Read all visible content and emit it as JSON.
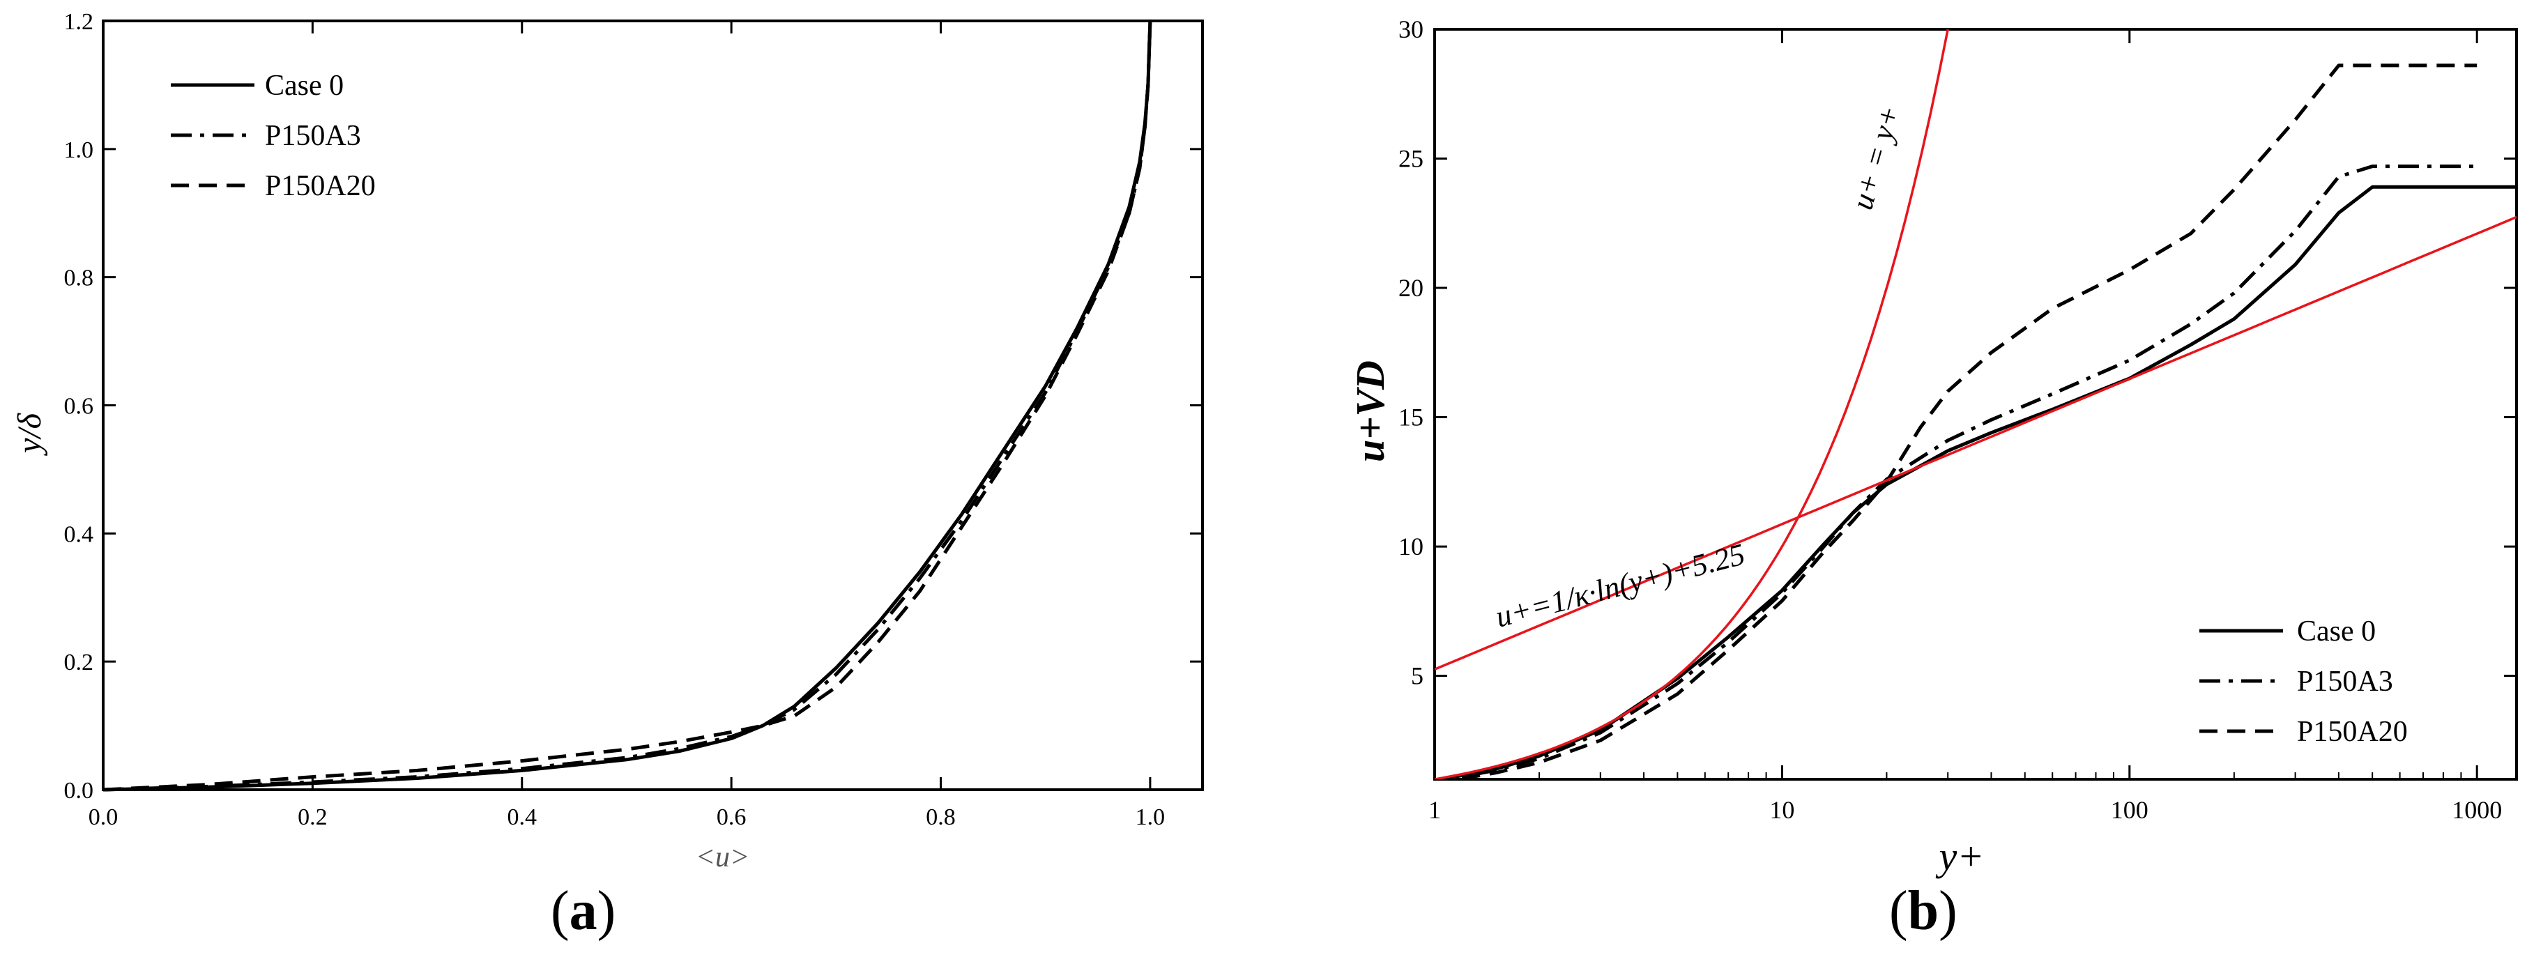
{
  "chart_data": [
    {
      "panel_label": "a",
      "type": "line",
      "xlabel": "<u>",
      "ylabel": "y/δ",
      "xlim": [
        0.0,
        1.05
      ],
      "ylim": [
        0.0,
        1.2
      ],
      "xticks": [
        "0.0",
        "0.2",
        "0.4",
        "0.6",
        "0.8",
        "1.0"
      ],
      "yticks": [
        "0.0",
        "0.2",
        "0.4",
        "0.6",
        "0.8",
        "1.0",
        "1.2"
      ],
      "grid": false,
      "legend_position": "top-left",
      "series": [
        {
          "name": "Case 0",
          "dash": "solid",
          "color": "#000000",
          "points": [
            [
              0.0,
              0.0
            ],
            [
              0.1,
              0.004
            ],
            [
              0.2,
              0.01
            ],
            [
              0.3,
              0.018
            ],
            [
              0.4,
              0.03
            ],
            [
              0.5,
              0.047
            ],
            [
              0.55,
              0.06
            ],
            [
              0.6,
              0.08
            ],
            [
              0.63,
              0.1
            ],
            [
              0.66,
              0.13
            ],
            [
              0.7,
              0.19
            ],
            [
              0.74,
              0.26
            ],
            [
              0.78,
              0.34
            ],
            [
              0.82,
              0.43
            ],
            [
              0.86,
              0.53
            ],
            [
              0.9,
              0.63
            ],
            [
              0.93,
              0.72
            ],
            [
              0.96,
              0.82
            ],
            [
              0.98,
              0.91
            ],
            [
              0.99,
              0.98
            ],
            [
              0.995,
              1.04
            ],
            [
              0.998,
              1.1
            ],
            [
              1.0,
              1.2
            ]
          ]
        },
        {
          "name": "P150A3",
          "dash": "dashdot",
          "color": "#000000",
          "points": [
            [
              0.0,
              0.0
            ],
            [
              0.1,
              0.005
            ],
            [
              0.2,
              0.012
            ],
            [
              0.3,
              0.02
            ],
            [
              0.4,
              0.033
            ],
            [
              0.5,
              0.05
            ],
            [
              0.55,
              0.064
            ],
            [
              0.6,
              0.083
            ],
            [
              0.63,
              0.1
            ],
            [
              0.66,
              0.125
            ],
            [
              0.7,
              0.18
            ],
            [
              0.74,
              0.25
            ],
            [
              0.78,
              0.33
            ],
            [
              0.82,
              0.42
            ],
            [
              0.86,
              0.52
            ],
            [
              0.9,
              0.62
            ],
            [
              0.93,
              0.715
            ],
            [
              0.96,
              0.815
            ],
            [
              0.98,
              0.9
            ],
            [
              0.99,
              0.97
            ],
            [
              0.995,
              1.035
            ],
            [
              0.998,
              1.1
            ],
            [
              1.0,
              1.2
            ]
          ]
        },
        {
          "name": "P150A20",
          "dash": "dashed",
          "color": "#000000",
          "points": [
            [
              0.0,
              0.0
            ],
            [
              0.1,
              0.008
            ],
            [
              0.2,
              0.02
            ],
            [
              0.3,
              0.03
            ],
            [
              0.4,
              0.045
            ],
            [
              0.5,
              0.063
            ],
            [
              0.55,
              0.075
            ],
            [
              0.6,
              0.09
            ],
            [
              0.63,
              0.1
            ],
            [
              0.66,
              0.115
            ],
            [
              0.7,
              0.16
            ],
            [
              0.74,
              0.23
            ],
            [
              0.78,
              0.31
            ],
            [
              0.82,
              0.41
            ],
            [
              0.86,
              0.51
            ],
            [
              0.9,
              0.615
            ],
            [
              0.93,
              0.71
            ],
            [
              0.96,
              0.81
            ],
            [
              0.98,
              0.9
            ],
            [
              0.99,
              0.97
            ],
            [
              0.995,
              1.035
            ],
            [
              0.998,
              1.1
            ],
            [
              1.0,
              1.2
            ]
          ]
        }
      ]
    },
    {
      "panel_label": "b",
      "type": "line",
      "xscale": "log",
      "xlabel": "y+",
      "ylabel": "u+VD",
      "xlim": [
        1,
        1300
      ],
      "ylim": [
        1,
        30
      ],
      "xticks": [
        "1",
        "10",
        "100",
        "1000"
      ],
      "yticks": [
        "5",
        "10",
        "15",
        "20",
        "25",
        "30"
      ],
      "grid": false,
      "legend_position": "bottom-right",
      "annotations": [
        {
          "text": "u+ = y+",
          "target": "viscous-sublayer-line"
        },
        {
          "text": "u+=1/κ·ln(y+)+5.25",
          "target": "log-law-line"
        }
      ],
      "series": [
        {
          "name": "Case 0",
          "dash": "solid",
          "color": "#000000",
          "points": [
            [
              1,
              0.95
            ],
            [
              1.5,
              1.4
            ],
            [
              2,
              1.9
            ],
            [
              3,
              2.9
            ],
            [
              5,
              4.9
            ],
            [
              7,
              6.5
            ],
            [
              10,
              8.3
            ],
            [
              13,
              10.0
            ],
            [
              16,
              11.3
            ],
            [
              20,
              12.4
            ],
            [
              30,
              13.7
            ],
            [
              40,
              14.4
            ],
            [
              60,
              15.3
            ],
            [
              100,
              16.5
            ],
            [
              150,
              17.8
            ],
            [
              200,
              18.8
            ],
            [
              300,
              20.9
            ],
            [
              400,
              22.9
            ],
            [
              500,
              23.9
            ],
            [
              700,
              23.9
            ],
            [
              1300,
              23.9
            ]
          ]
        },
        {
          "name": "P150A3",
          "dash": "dashdot",
          "color": "#000000",
          "points": [
            [
              1,
              0.9
            ],
            [
              1.5,
              1.35
            ],
            [
              2,
              1.8
            ],
            [
              3,
              2.8
            ],
            [
              5,
              4.7
            ],
            [
              7,
              6.3
            ],
            [
              10,
              8.2
            ],
            [
              13,
              9.9
            ],
            [
              16,
              11.3
            ],
            [
              20,
              12.6
            ],
            [
              30,
              14.1
            ],
            [
              40,
              14.9
            ],
            [
              60,
              15.9
            ],
            [
              100,
              17.2
            ],
            [
              150,
              18.6
            ],
            [
              200,
              19.8
            ],
            [
              300,
              22.2
            ],
            [
              400,
              24.3
            ],
            [
              500,
              24.7
            ],
            [
              700,
              24.7
            ],
            [
              1000,
              24.7
            ]
          ]
        },
        {
          "name": "P150A20",
          "dash": "dashed",
          "color": "#000000",
          "points": [
            [
              1,
              0.85
            ],
            [
              1.5,
              1.25
            ],
            [
              2,
              1.65
            ],
            [
              3,
              2.5
            ],
            [
              5,
              4.3
            ],
            [
              7,
              6.0
            ],
            [
              10,
              7.9
            ],
            [
              13,
              9.7
            ],
            [
              16,
              11.0
            ],
            [
              20,
              12.5
            ],
            [
              25,
              14.6
            ],
            [
              30,
              16.0
            ],
            [
              40,
              17.5
            ],
            [
              60,
              19.2
            ],
            [
              100,
              20.7
            ],
            [
              150,
              22.1
            ],
            [
              200,
              23.8
            ],
            [
              300,
              26.5
            ],
            [
              400,
              28.6
            ],
            [
              700,
              28.6
            ],
            [
              1000,
              28.6
            ]
          ]
        },
        {
          "name": "",
          "id": "viscous-sublayer-line",
          "dash": "solid",
          "color": "#e8141c",
          "function": "u+ = y+",
          "points": [
            [
              1,
              1
            ],
            [
              2,
              2
            ],
            [
              5,
              5
            ],
            [
              10,
              10
            ],
            [
              20,
              20
            ],
            [
              30,
              30
            ]
          ]
        },
        {
          "name": "",
          "id": "log-law-line",
          "dash": "solid",
          "color": "#e8141c",
          "function": "u+ = 2.439·ln(y+) + 5.25",
          "points": [
            [
              1,
              5.25
            ],
            [
              10,
              10.87
            ],
            [
              100,
              16.48
            ],
            [
              1000,
              22.1
            ],
            [
              1300,
              22.74
            ]
          ]
        }
      ]
    }
  ],
  "captions": {
    "a": "a",
    "b": "b"
  }
}
